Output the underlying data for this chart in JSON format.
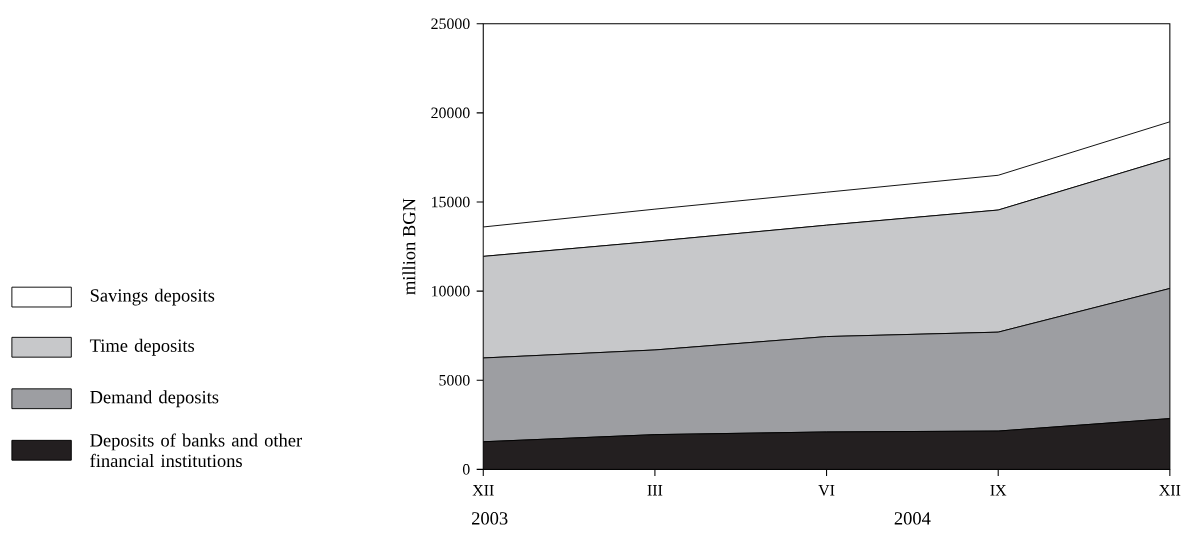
{
  "chart_data": {
    "type": "area",
    "stacked": true,
    "ylabel": "million BGN",
    "categories": [
      "XII",
      "III",
      "VI",
      "IX",
      "XII"
    ],
    "series": [
      {
        "name": "Deposits of banks and other financial institutions",
        "color": "#231f20",
        "values": [
          1550,
          1950,
          2100,
          2150,
          2850
        ]
      },
      {
        "name": "Demand deposits",
        "color": "#9d9ea2",
        "values": [
          4700,
          4750,
          5350,
          5550,
          7300
        ]
      },
      {
        "name": "Time deposits",
        "color": "#c7c8ca",
        "values": [
          5700,
          6100,
          6250,
          6850,
          7300
        ]
      },
      {
        "name": "Savings deposits",
        "color": "#ffffff",
        "values": [
          1650,
          1800,
          1850,
          1950,
          2050
        ]
      }
    ],
    "ylim": [
      0,
      25000
    ],
    "yticks": [
      0,
      5000,
      10000,
      15000,
      20000,
      25000
    ],
    "annotations": [
      "2003",
      "2004"
    ],
    "legend": "left",
    "grid": false
  }
}
